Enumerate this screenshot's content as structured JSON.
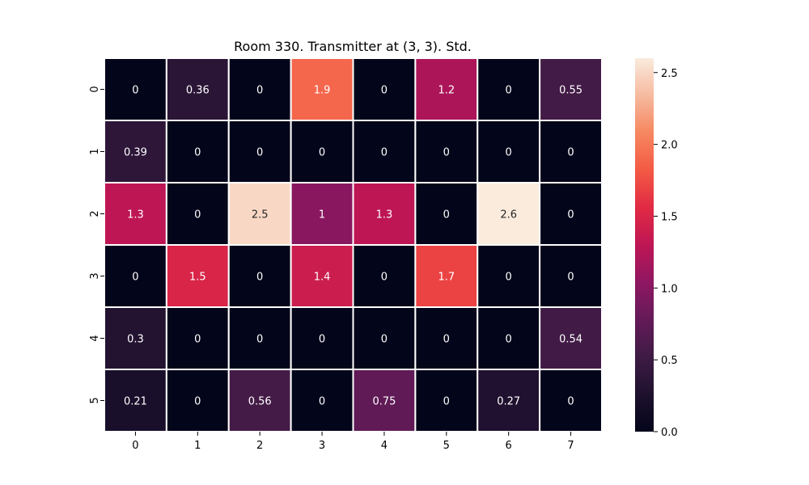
{
  "chart_data": {
    "type": "heatmap",
    "title": "Room 330. Transmitter at (3, 3). Std.",
    "xlabel": "",
    "ylabel": "",
    "x_ticks": [
      "0",
      "1",
      "2",
      "3",
      "4",
      "5",
      "6",
      "7"
    ],
    "y_ticks": [
      "0",
      "1",
      "2",
      "3",
      "4",
      "5"
    ],
    "values": [
      [
        0,
        0.36,
        0,
        1.9,
        0,
        1.2,
        0,
        0.55
      ],
      [
        0.39,
        0,
        0,
        0,
        0,
        0,
        0,
        0
      ],
      [
        1.3,
        0,
        2.5,
        1,
        1.3,
        0,
        2.6,
        0
      ],
      [
        0,
        1.5,
        0,
        1.4,
        0,
        1.7,
        0,
        0
      ],
      [
        0.3,
        0,
        0,
        0,
        0,
        0,
        0,
        0.54
      ],
      [
        0.21,
        0,
        0.56,
        0,
        0.75,
        0,
        0.27,
        0
      ]
    ],
    "labels": [
      [
        "0",
        "0.36",
        "0",
        "1.9",
        "0",
        "1.2",
        "0",
        "0.55"
      ],
      [
        "0.39",
        "0",
        "0",
        "0",
        "0",
        "0",
        "0",
        "0"
      ],
      [
        "1.3",
        "0",
        "2.5",
        "1",
        "1.3",
        "0",
        "2.6",
        "0"
      ],
      [
        "0",
        "1.5",
        "0",
        "1.4",
        "0",
        "1.7",
        "0",
        "0"
      ],
      [
        "0.3",
        "0",
        "0",
        "0",
        "0",
        "0",
        "0",
        "0.54"
      ],
      [
        "0.21",
        "0",
        "0.56",
        "0",
        "0.75",
        "0",
        "0.27",
        "0"
      ]
    ],
    "vmin": 0,
    "vmax": 2.6,
    "colormap": "rocket",
    "colorbar_ticks": [
      0.0,
      0.5,
      1.0,
      1.5,
      2.0,
      2.5
    ],
    "colorbar_tick_labels": [
      "0.0",
      "0.5",
      "1.0",
      "1.5",
      "2.0",
      "2.5"
    ],
    "grid_line_color": "#ffffff"
  }
}
